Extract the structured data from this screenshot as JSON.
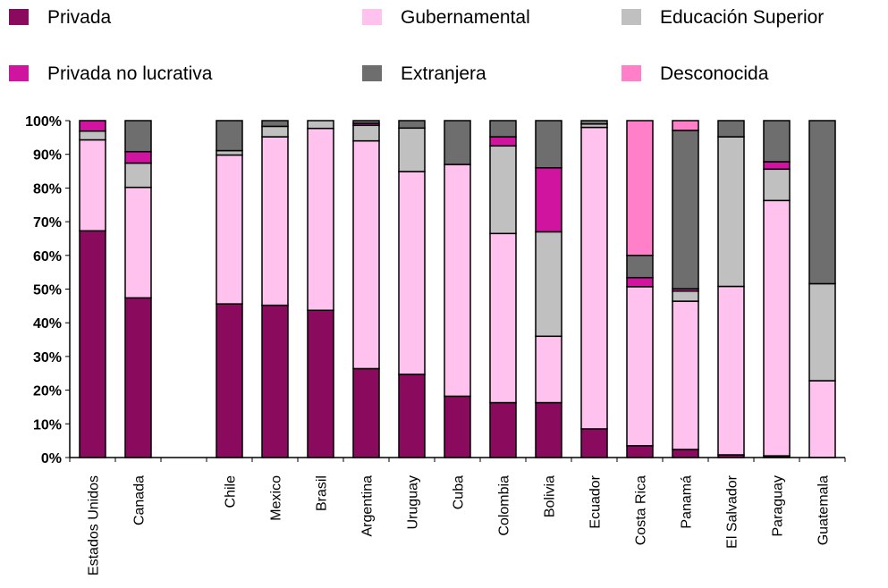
{
  "chart_data": {
    "type": "bar",
    "stacked": true,
    "percent": true,
    "categories": [
      "Estados Unidos",
      "Canada",
      "",
      "Chile",
      "Mexico",
      "Brasil",
      "Argentina",
      "Uruguay",
      "Cuba",
      "Colombia",
      "Bolivia",
      "Ecuador",
      "Costa Rica",
      "Panamá",
      "El Salvador",
      "Paraguay",
      "Guatemala"
    ],
    "series": [
      {
        "name": "Privada",
        "color": "#8a0a5e",
        "values": [
          67.3,
          47.4,
          0,
          45.6,
          45.2,
          43.7,
          26.4,
          24.7,
          18.2,
          16.3,
          16.3,
          8.5,
          3.5,
          2.4,
          0.8,
          0.5,
          0
        ]
      },
      {
        "name": "Gubernamental",
        "color": "#ffc2ef",
        "values": [
          27.0,
          32.8,
          0,
          44.2,
          50.0,
          54.0,
          67.6,
          60.2,
          68.8,
          50.2,
          19.7,
          89.5,
          47.2,
          44.0,
          50.0,
          75.8,
          22.8
        ]
      },
      {
        "name": "Educación Superior",
        "color": "#c0c0c0",
        "values": [
          2.6,
          7.2,
          0,
          1.3,
          3.1,
          2.3,
          4.6,
          12.9,
          0,
          26.0,
          31.0,
          1.0,
          0,
          3.0,
          44.4,
          9.3,
          28.8
        ]
      },
      {
        "name": "Privada no lucrativa",
        "color": "#d1149f",
        "values": [
          3.1,
          3.4,
          0,
          0,
          0,
          0,
          0.6,
          0,
          0,
          2.7,
          19.0,
          0,
          2.7,
          0.7,
          0,
          2.2,
          0
        ]
      },
      {
        "name": "Extranjera",
        "color": "#6e6e6e",
        "values": [
          0,
          9.2,
          0,
          8.9,
          1.7,
          0,
          0.8,
          2.2,
          13.0,
          4.8,
          14.0,
          1.0,
          6.6,
          47.0,
          4.8,
          12.2,
          48.4
        ]
      },
      {
        "name": "Desconocida",
        "color": "#ff80c8",
        "values": [
          0,
          0,
          0,
          0,
          0,
          0,
          0,
          0,
          0,
          0,
          0,
          0,
          40.0,
          2.9,
          0,
          0,
          0
        ]
      }
    ],
    "y_ticks": [
      "0%",
      "10%",
      "20%",
      "30%",
      "40%",
      "50%",
      "60%",
      "70%",
      "80%",
      "90%",
      "100%"
    ],
    "ylim": [
      0,
      100
    ],
    "grid": false,
    "legend_position": "top",
    "title": "",
    "xlabel": "",
    "ylabel": ""
  }
}
